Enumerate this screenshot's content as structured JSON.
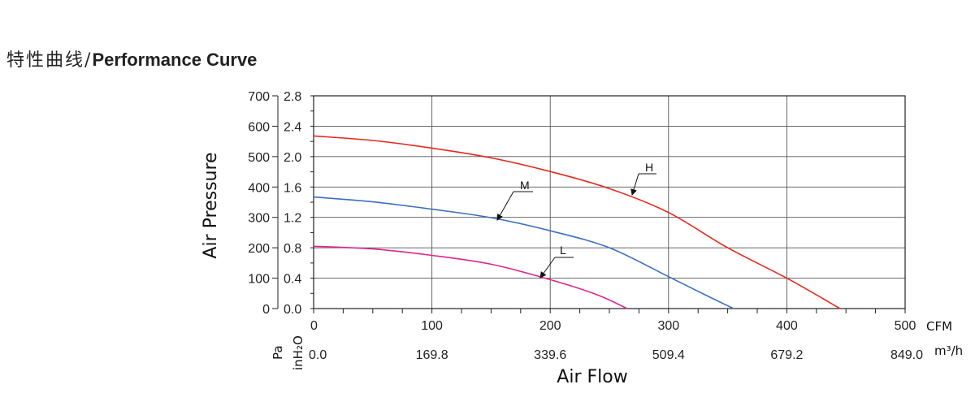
{
  "title": {
    "cn": "特性曲线",
    "sep": "/",
    "en": "Performance Curve"
  },
  "chart_data": {
    "type": "line",
    "xlabel": "Air Flow",
    "ylabel": "Air Pressure",
    "x_unit_primary": "CFM",
    "x_unit_secondary": "m³/h",
    "y_unit_primary": "Pa",
    "y_unit_secondary": "inH₂O",
    "xlim": [
      0,
      500
    ],
    "ylim": [
      0,
      700
    ],
    "x_ticks": [
      0,
      100,
      200,
      300,
      400,
      500
    ],
    "x_tick_labels_cfm": [
      "0",
      "100",
      "200",
      "300",
      "400",
      "500"
    ],
    "x_tick_labels_m3h": [
      "0.0",
      "169.8",
      "339.6",
      "509.4",
      "679.2",
      "849.0"
    ],
    "y_ticks": [
      0,
      100,
      200,
      300,
      400,
      500,
      600,
      700
    ],
    "y_tick_labels_pa": [
      "0",
      "100",
      "200",
      "300",
      "400",
      "500",
      "600",
      "700"
    ],
    "y_tick_labels_inh2o": [
      "0.0",
      "0.4",
      "0.8",
      "1.2",
      "1.6",
      "2.0",
      "2.4",
      "2.8"
    ],
    "grid": true,
    "series": [
      {
        "name": "H",
        "color": "#e8271e",
        "x": [
          0,
          50,
          100,
          150,
          200,
          250,
          300,
          350,
          400,
          445
        ],
        "y": [
          568,
          553,
          528,
          496,
          451,
          395,
          316,
          200,
          100,
          0
        ]
      },
      {
        "name": "M",
        "color": "#3c6fc0",
        "x": [
          0,
          50,
          100,
          150,
          200,
          250,
          300,
          330,
          355
        ],
        "y": [
          367,
          351,
          327,
          299,
          256,
          200,
          105,
          47,
          0
        ]
      },
      {
        "name": "L",
        "color": "#e0258a",
        "x": [
          0,
          50,
          100,
          150,
          200,
          240,
          265
        ],
        "y": [
          205,
          196,
          175,
          146,
          95,
          45,
          0
        ]
      }
    ]
  }
}
